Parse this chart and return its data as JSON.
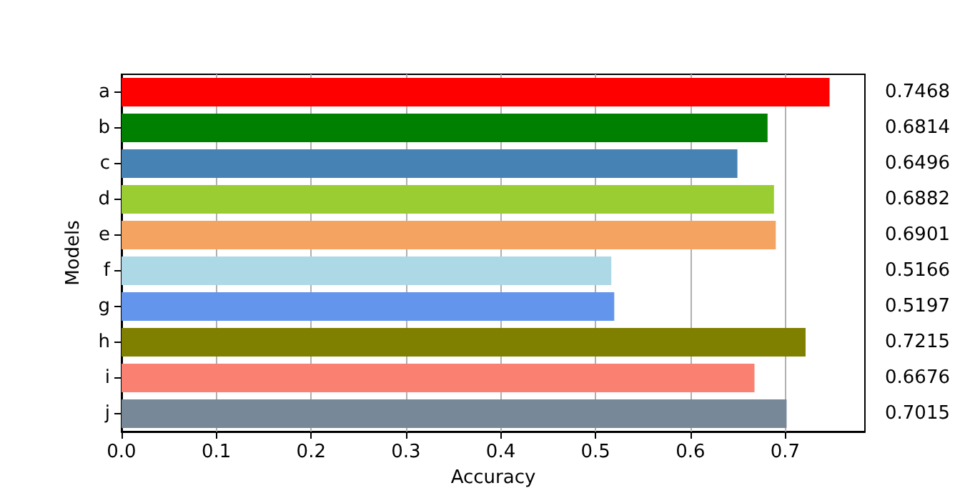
{
  "chart_data": {
    "type": "bar",
    "orientation": "horizontal",
    "xlabel": "Accuracy",
    "ylabel": "Models",
    "categories": [
      "a",
      "b",
      "c",
      "d",
      "e",
      "f",
      "g",
      "h",
      "i",
      "j"
    ],
    "values": [
      0.7468,
      0.6814,
      0.6496,
      0.6882,
      0.6901,
      0.5166,
      0.5197,
      0.7215,
      0.6676,
      0.7015
    ],
    "colors": [
      "#ff0000",
      "#008000",
      "#4682b4",
      "#9acd32",
      "#f4a460",
      "#add8e6",
      "#6495ed",
      "#808000",
      "#fa8072",
      "#778899"
    ],
    "xlim": [
      0,
      0.7841
    ],
    "xticks": [
      {
        "value": 0,
        "label": "0.0"
      },
      0.1,
      0.2,
      0.3,
      0.4,
      0.5,
      0.6,
      0.7
    ],
    "grid": "x",
    "data_labels": true
  }
}
